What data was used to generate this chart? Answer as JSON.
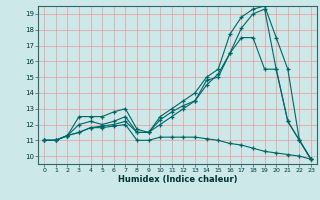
{
  "xlabel": "Humidex (Indice chaleur)",
  "bg_color": "#cce8e8",
  "grid_color": "#ee9999",
  "line_color": "#006666",
  "xlim": [
    -0.5,
    23.5
  ],
  "ylim": [
    9.5,
    19.5
  ],
  "xticks": [
    0,
    1,
    2,
    3,
    4,
    5,
    6,
    7,
    8,
    9,
    10,
    11,
    12,
    13,
    14,
    15,
    16,
    17,
    18,
    19,
    20,
    21,
    22,
    23
  ],
  "yticks": [
    10,
    11,
    12,
    13,
    14,
    15,
    16,
    17,
    18,
    19
  ],
  "lines": [
    {
      "x": [
        0,
        1,
        2,
        3,
        4,
        5,
        6,
        7,
        8,
        9,
        10,
        11,
        12,
        13,
        14,
        15,
        16,
        17,
        18,
        19,
        20,
        21,
        22,
        23
      ],
      "y": [
        11,
        11,
        11.3,
        12.5,
        12.5,
        12.5,
        12.8,
        13.0,
        11.7,
        11.5,
        12.5,
        13.0,
        13.5,
        14.0,
        15.0,
        15.5,
        17.7,
        18.8,
        19.3,
        19.5,
        17.5,
        15.5,
        11.0,
        9.8
      ]
    },
    {
      "x": [
        0,
        1,
        2,
        3,
        4,
        5,
        6,
        7,
        8,
        9,
        10,
        11,
        12,
        13,
        14,
        15,
        16,
        17,
        18,
        19,
        20,
        21,
        22,
        23
      ],
      "y": [
        11,
        11,
        11.3,
        12.0,
        12.2,
        12.0,
        12.2,
        12.5,
        11.5,
        11.5,
        12.3,
        12.8,
        13.2,
        13.5,
        14.8,
        15.0,
        16.5,
        18.1,
        19.0,
        19.3,
        15.5,
        12.2,
        11.0,
        9.8
      ]
    },
    {
      "x": [
        0,
        1,
        2,
        3,
        4,
        5,
        6,
        7,
        8,
        9,
        10,
        11,
        12,
        13,
        14,
        15,
        16,
        17,
        18,
        19,
        20,
        21,
        22,
        23
      ],
      "y": [
        11,
        11,
        11.3,
        11.5,
        11.8,
        11.9,
        12.0,
        12.2,
        11.5,
        11.5,
        12.0,
        12.5,
        13.0,
        13.5,
        14.5,
        15.2,
        16.5,
        17.5,
        17.5,
        15.5,
        15.5,
        12.2,
        11.0,
        9.8
      ]
    },
    {
      "x": [
        0,
        1,
        2,
        3,
        4,
        5,
        6,
        7,
        8,
        9,
        10,
        11,
        12,
        13,
        14,
        15,
        16,
        17,
        18,
        19,
        20,
        21,
        22,
        23
      ],
      "y": [
        11,
        11,
        11.3,
        11.5,
        11.8,
        11.8,
        11.9,
        12.0,
        11.0,
        11.0,
        11.2,
        11.2,
        11.2,
        11.2,
        11.1,
        11.0,
        10.8,
        10.7,
        10.5,
        10.3,
        10.2,
        10.1,
        10.0,
        9.8
      ]
    }
  ]
}
